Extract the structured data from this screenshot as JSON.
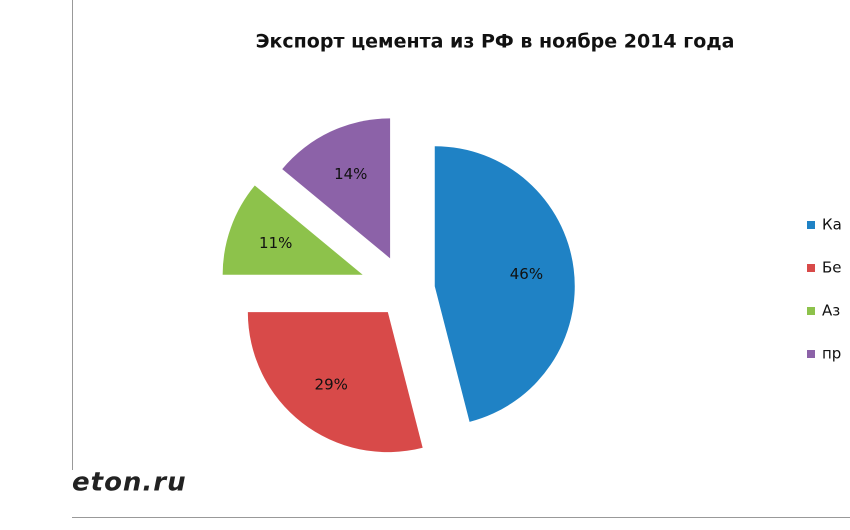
{
  "chart_data": {
    "type": "pie",
    "title": "Экспорт цемента из РФ в ноябре 2014 года",
    "categories": [
      "Ка",
      "Бе",
      "Аз",
      "пр"
    ],
    "values": [
      46,
      29,
      11,
      14
    ],
    "value_labels": [
      "46%",
      "29%",
      "11%",
      "14%"
    ],
    "colors": [
      "#1f82c5",
      "#d84a49",
      "#8dc24b",
      "#8c62a8"
    ]
  },
  "watermark": "eton.ru"
}
